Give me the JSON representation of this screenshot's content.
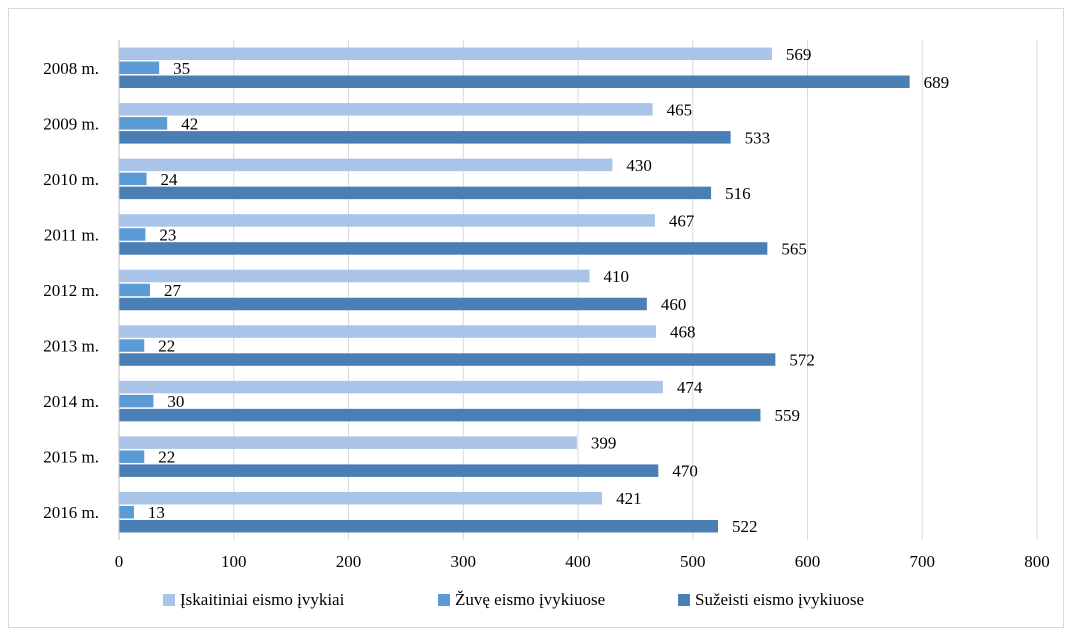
{
  "chart_data": {
    "type": "bar",
    "orientation": "horizontal",
    "categories": [
      "2008 m.",
      "2009 m.",
      "2010 m.",
      "2011 m.",
      "2012 m.",
      "2013 m.",
      "2014 m.",
      "2015 m.",
      "2016 m."
    ],
    "series": [
      {
        "name": "Įskaitiniai eismo įvykiai",
        "values": [
          569,
          465,
          430,
          467,
          410,
          468,
          474,
          399,
          421
        ],
        "color": "#a9c4e8"
      },
      {
        "name": "Žuvę eismo įvykiuose",
        "values": [
          35,
          42,
          24,
          23,
          27,
          22,
          30,
          22,
          13
        ],
        "color": "#5b9bd5"
      },
      {
        "name": "Sužeisti eismo įvykiuose",
        "values": [
          689,
          533,
          516,
          565,
          460,
          572,
          559,
          470,
          522
        ],
        "color": "#4a7fb5"
      }
    ],
    "xlim": [
      0,
      800
    ],
    "xticks": [
      0,
      100,
      200,
      300,
      400,
      500,
      600,
      700,
      800
    ],
    "grid": true,
    "legend_position": "bottom",
    "data_labels": true
  }
}
